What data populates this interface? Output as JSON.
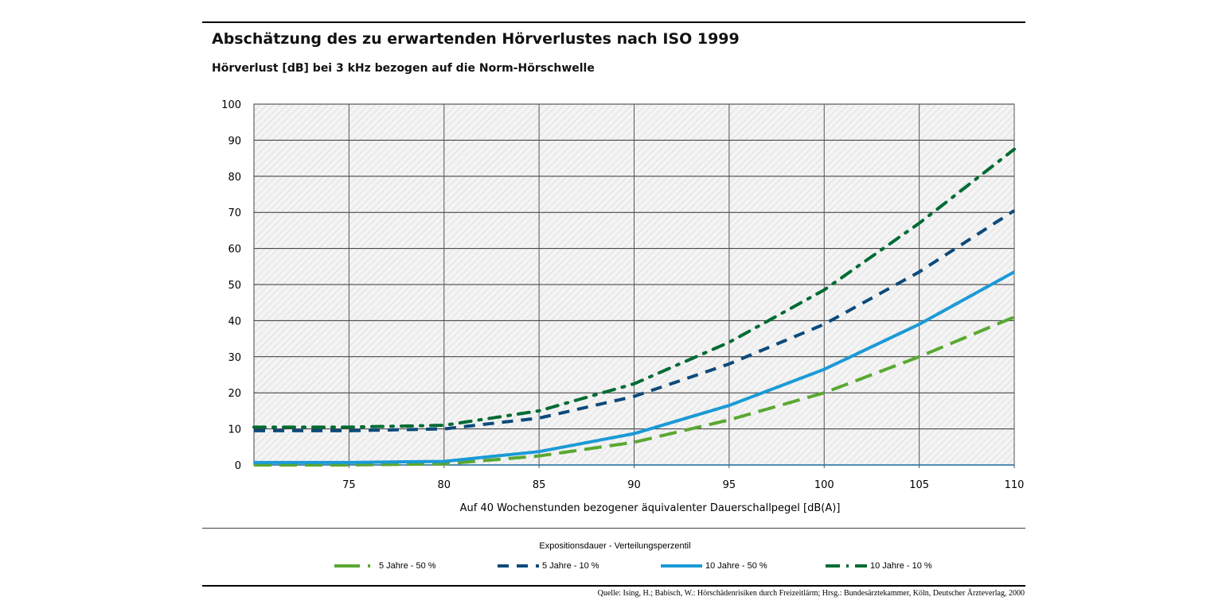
{
  "title": "Abschätzung des zu erwartenden Hörverlustes nach ISO 1999",
  "subtitle": "Hörverlust [dB] bei 3 kHz bezogen auf die Norm-Hörschwelle",
  "legend_title": "Expositionsdauer - Verteilungsperzentil",
  "source": "Quelle: Ising, H.; Babisch, W.: Hörschädenrisiken durch Freizeitlärm; Hrsg.: Bundesärztekammer, Köln, Deutscher Ärzteverlag, 2000",
  "chart_data": {
    "type": "line",
    "title": "Abschätzung des zu erwartenden Hörverlustes nach ISO 1999",
    "ylabel": "Hörverlust [dB] bei 3 kHz bezogen auf die Norm-Hörschwelle",
    "xlabel": "Auf 40 Wochenstunden bezogener äquivalenter Dauerschallpegel [dB(A)]",
    "xlim": [
      70,
      110
    ],
    "ylim": [
      0,
      100
    ],
    "xticks": [
      75,
      80,
      85,
      90,
      95,
      100,
      105,
      110
    ],
    "yticks": [
      0,
      10,
      20,
      30,
      40,
      50,
      60,
      70,
      80,
      90,
      100
    ],
    "grid": true,
    "legend_placement": "bottom",
    "x": [
      70,
      75,
      80,
      85,
      90,
      95,
      100,
      105,
      110
    ],
    "series": [
      {
        "name": "5 Jahre - 50 %",
        "color": "#5aa832",
        "style": "long-dash",
        "values": [
          0,
          0,
          0.3,
          2.5,
          6.3,
          12.5,
          20,
          30,
          41
        ]
      },
      {
        "name": "5 Jahre - 10 %",
        "color": "#0d4a7a",
        "style": "dash",
        "values": [
          9.5,
          9.5,
          10,
          13,
          19,
          28,
          39,
          53.5,
          70.5
        ]
      },
      {
        "name": "10 Jahre - 50 %",
        "color": "#1b9ad6",
        "style": "solid",
        "values": [
          0.7,
          0.7,
          1,
          3.7,
          8.7,
          16.5,
          26.5,
          39,
          53.5
        ]
      },
      {
        "name": "10 Jahre - 10 %",
        "color": "#006b33",
        "style": "dash-dot",
        "values": [
          10.5,
          10.5,
          11,
          15,
          22.5,
          34,
          48.5,
          67,
          87.5
        ]
      }
    ]
  }
}
